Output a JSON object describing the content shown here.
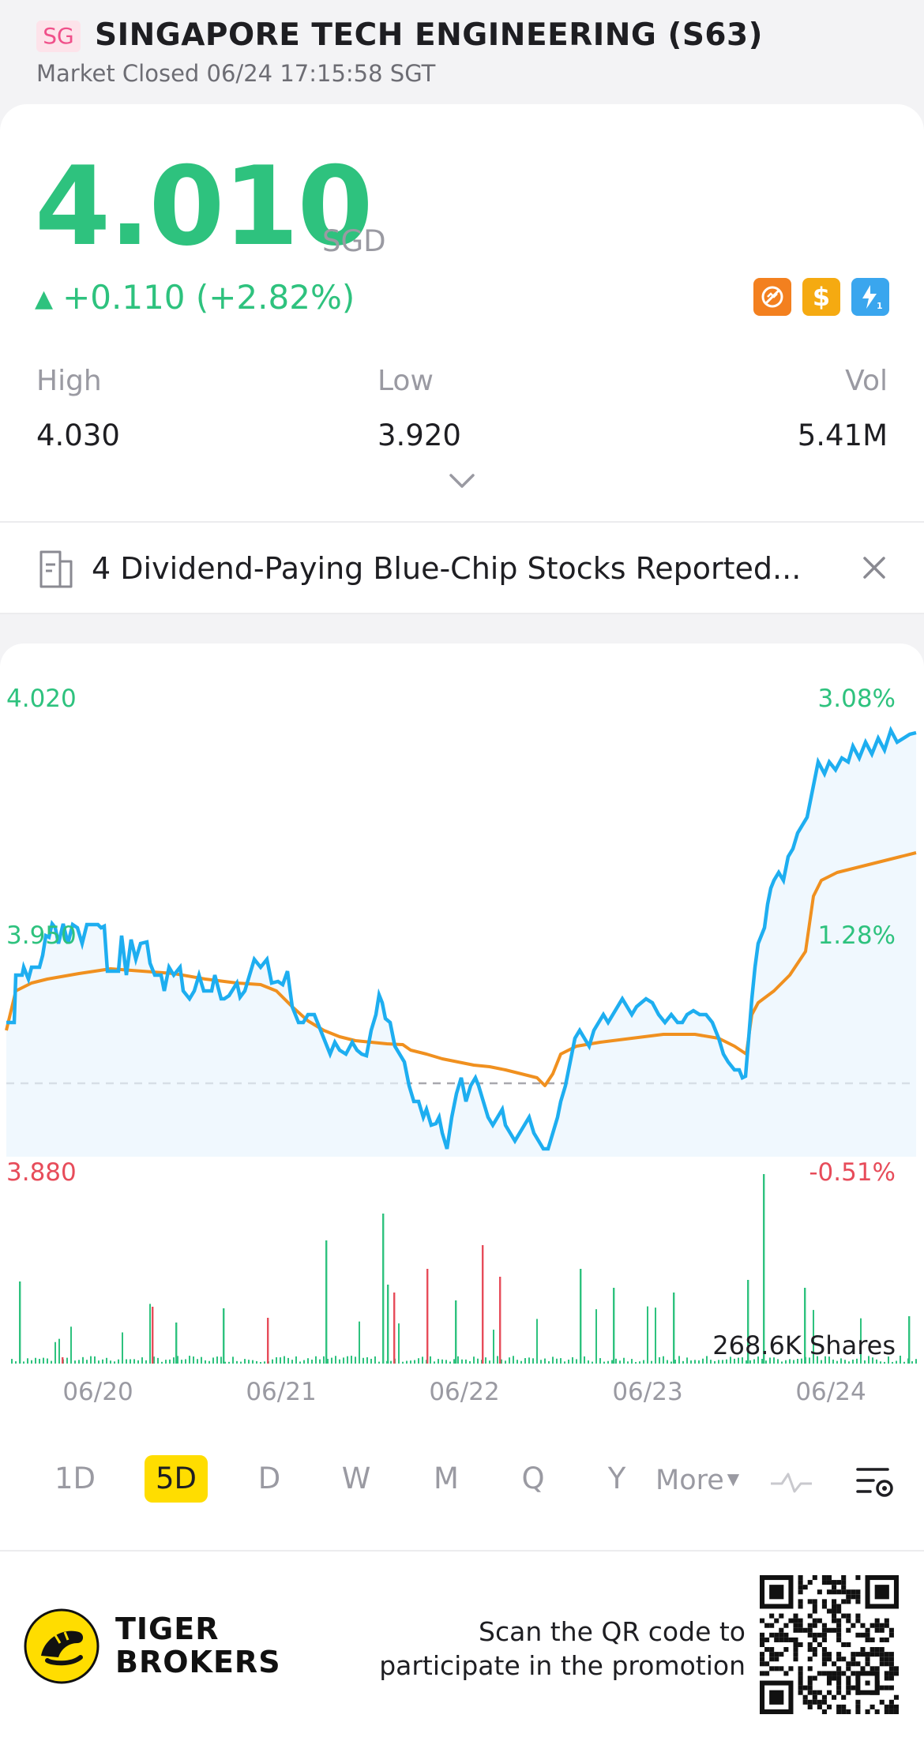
{
  "header": {
    "market_badge": "SG",
    "title": "SINGAPORE TECH ENGINEERING (S63)",
    "status": "Market Closed 06/24 17:15:58 SGT"
  },
  "quote": {
    "price": "4.010",
    "currency": "SGD",
    "change": "+0.110 (+2.82%)",
    "price_color": "#2ec27e",
    "feature_icons": [
      "no-short-icon",
      "dividend-dollar-icon",
      "lightning-level1-icon"
    ],
    "high_label": "High",
    "high_value": "4.030",
    "low_label": "Low",
    "low_value": "3.920",
    "vol_label": "Vol",
    "vol_value": "5.41M"
  },
  "news": {
    "headline": "4 Dividend-Paying Blue-Chip Stocks Reported..."
  },
  "chart": {
    "y_left_top": "4.020",
    "y_left_mid": "3.950",
    "y_left_bot": "3.880",
    "y_right_top": "3.08%",
    "y_right_mid": "1.28%",
    "y_right_bot": "-0.51%",
    "volume_label": "268.6K Shares",
    "dates": [
      "06/20",
      "06/21",
      "06/22",
      "06/23",
      "06/24"
    ],
    "price_color": "#1eaef0",
    "avg_color": "#f0901f",
    "up_volume_color": "#2ec27e",
    "down_volume_color": "#e74c5a"
  },
  "chart_data": {
    "type": "line",
    "x": [
      "06/20",
      "06/21",
      "06/22",
      "06/23",
      "06/24"
    ],
    "ylim": [
      3.88,
      4.02
    ],
    "series": [],
    "reference_line": 3.9
  },
  "periods": {
    "tabs": [
      "1D",
      "5D",
      "D",
      "W",
      "M",
      "Q",
      "Y"
    ],
    "active": "5D",
    "more": "More"
  },
  "footer": {
    "brand_line1": "TIGER",
    "brand_line2": "BROKERS",
    "promo_line1": "Scan the QR code to",
    "promo_line2": "participate in the promotion"
  }
}
